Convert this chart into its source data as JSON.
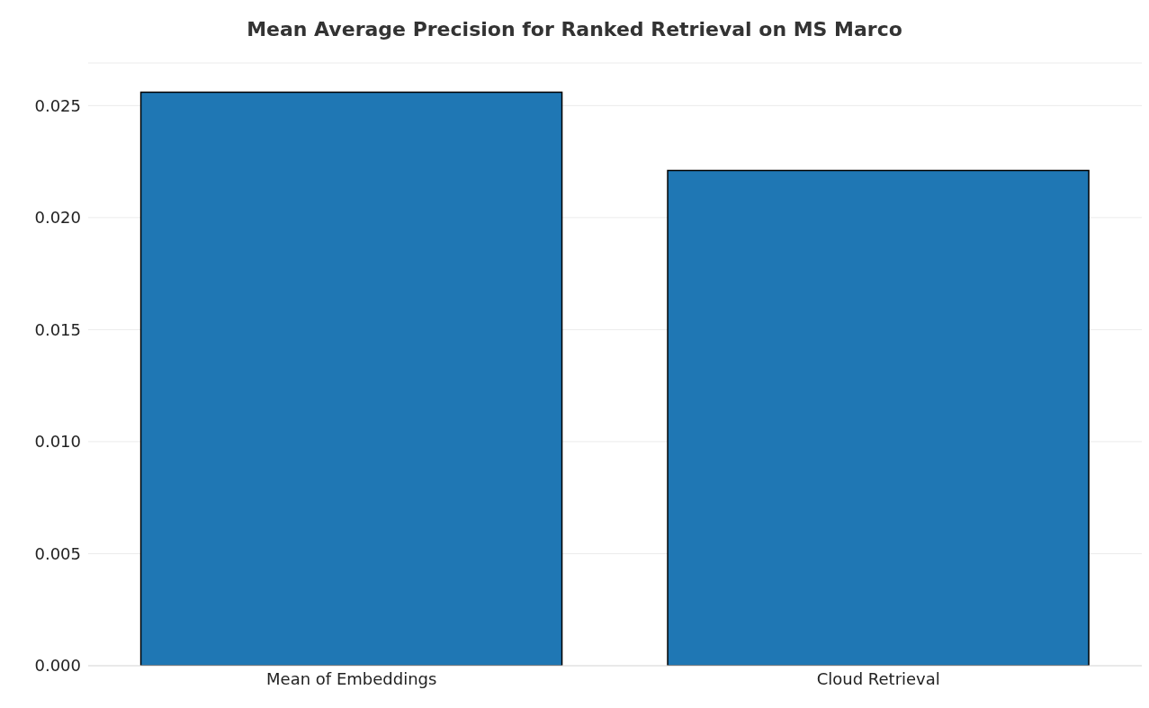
{
  "chart_data": {
    "type": "bar",
    "title": "Mean Average Precision for Ranked Retrieval on MS Marco",
    "categories": [
      "Mean of Embeddings",
      "Cloud Retrieval"
    ],
    "values": [
      0.0256,
      0.0221
    ],
    "color": "#1f77b4",
    "ylim": [
      0,
      0.0269
    ],
    "yticks": [
      {
        "value": 0,
        "label": "0.000"
      },
      {
        "value": 0.005,
        "label": "0.005"
      },
      {
        "value": 0.01,
        "label": "0.010"
      },
      {
        "value": 0.015,
        "label": "0.015"
      },
      {
        "value": 0.02,
        "label": "0.020"
      },
      {
        "value": 0.025,
        "label": "0.025"
      }
    ],
    "grid": "y"
  }
}
